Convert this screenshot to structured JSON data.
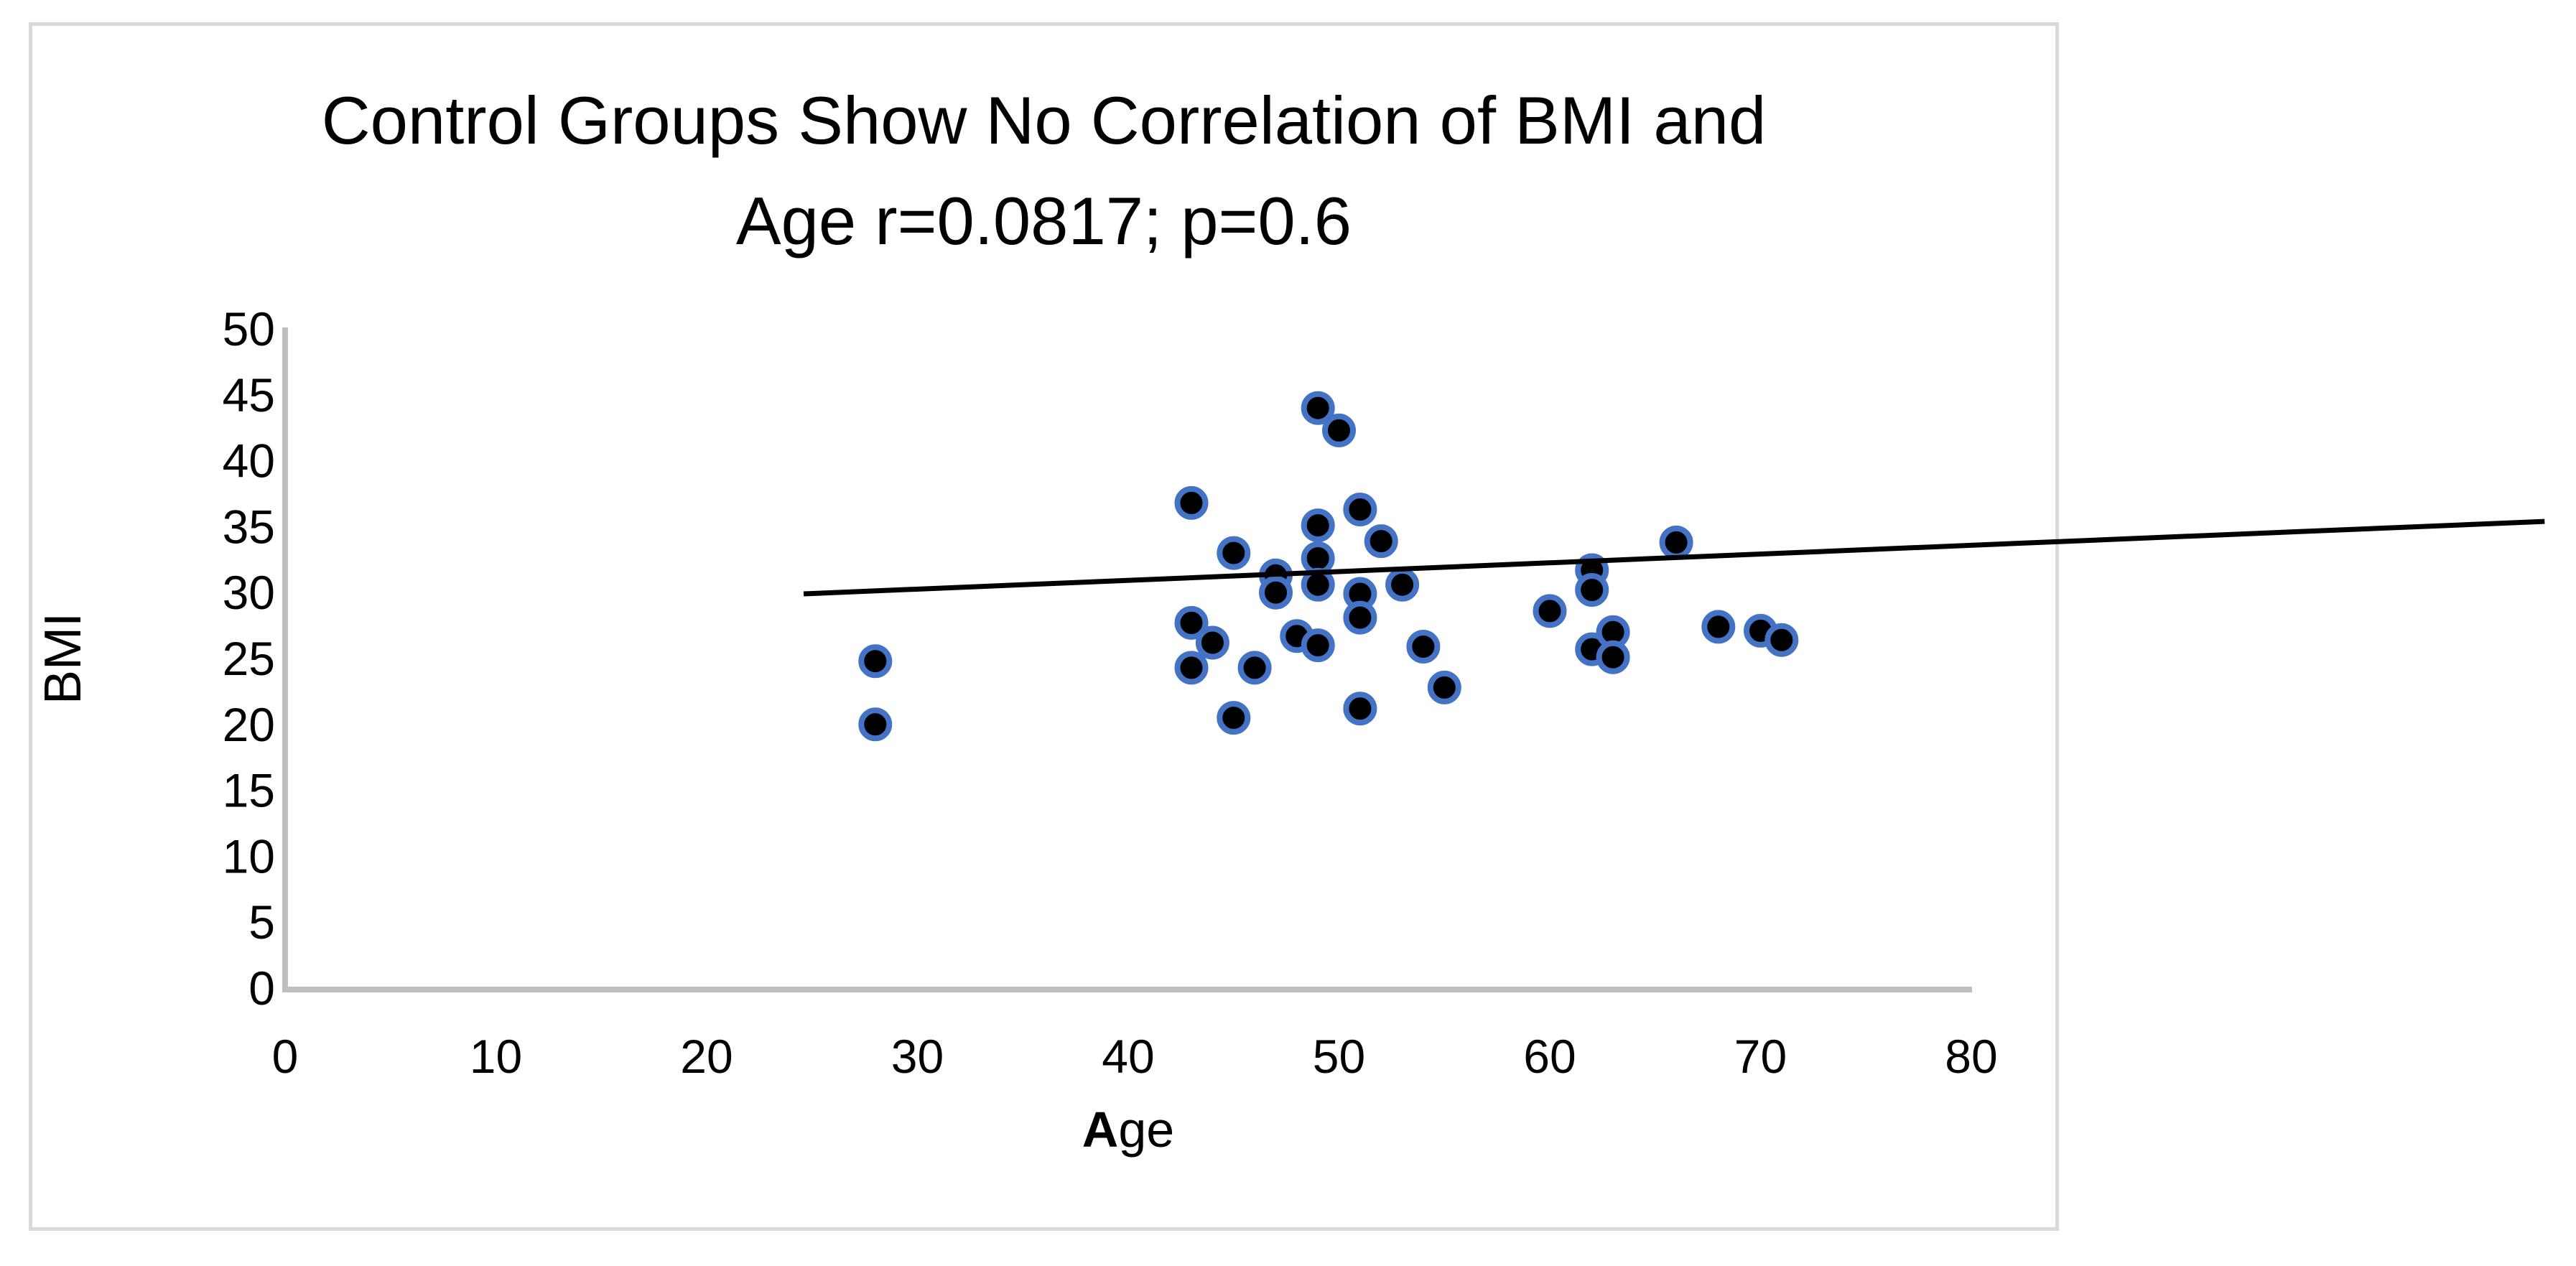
{
  "chart_data": {
    "type": "scatter",
    "title_line1": "Control Groups Show No Correlation of BMI and",
    "title_line2": "Age r=0.0817; p=0.6",
    "stats": {
      "r": "0.0817",
      "p": "0.6"
    },
    "xlabel_bold": "A",
    "xlabel_rest": "ge",
    "ylabel": "BMI",
    "xlim": [
      0,
      80
    ],
    "ylim": [
      0,
      50
    ],
    "x_ticks": [
      0,
      10,
      20,
      30,
      40,
      50,
      60,
      70,
      80
    ],
    "y_ticks": [
      0,
      5,
      10,
      15,
      20,
      25,
      30,
      35,
      40,
      45,
      50
    ],
    "grid": false,
    "legend": false,
    "points": [
      [
        28,
        24.8
      ],
      [
        28,
        20.0
      ],
      [
        43,
        36.8
      ],
      [
        43,
        27.7
      ],
      [
        43,
        24.3
      ],
      [
        44,
        26.2
      ],
      [
        45,
        33.0
      ],
      [
        45,
        20.5
      ],
      [
        46,
        24.3
      ],
      [
        47,
        31.3
      ],
      [
        47,
        30.0
      ],
      [
        48,
        26.7
      ],
      [
        49,
        44.0
      ],
      [
        49,
        35.1
      ],
      [
        49,
        32.6
      ],
      [
        49,
        30.6
      ],
      [
        49,
        26.0
      ],
      [
        50,
        42.3
      ],
      [
        51,
        36.3
      ],
      [
        51,
        29.9
      ],
      [
        51,
        28.1
      ],
      [
        51,
        21.2
      ],
      [
        52,
        33.9
      ],
      [
        53,
        30.6
      ],
      [
        54,
        25.9
      ],
      [
        55,
        22.8
      ],
      [
        60,
        28.6
      ],
      [
        62,
        31.7
      ],
      [
        62,
        30.2
      ],
      [
        62,
        25.7
      ],
      [
        63,
        27.0
      ],
      [
        63,
        25.1
      ],
      [
        66,
        33.8
      ],
      [
        68,
        27.4
      ],
      [
        70,
        27.1
      ],
      [
        71,
        26.4
      ]
    ],
    "trendline": {
      "x1": 24.6,
      "y1": 29.9,
      "x2": 107.2,
      "y2": 35.4
    },
    "colors": {
      "marker_fill": "#000000",
      "marker_stroke": "#4472C4",
      "axis": "#BFBFBF",
      "frame": "#D9D9D9",
      "trend": "#000000",
      "text": "#000000",
      "background": "#FFFFFF"
    }
  }
}
